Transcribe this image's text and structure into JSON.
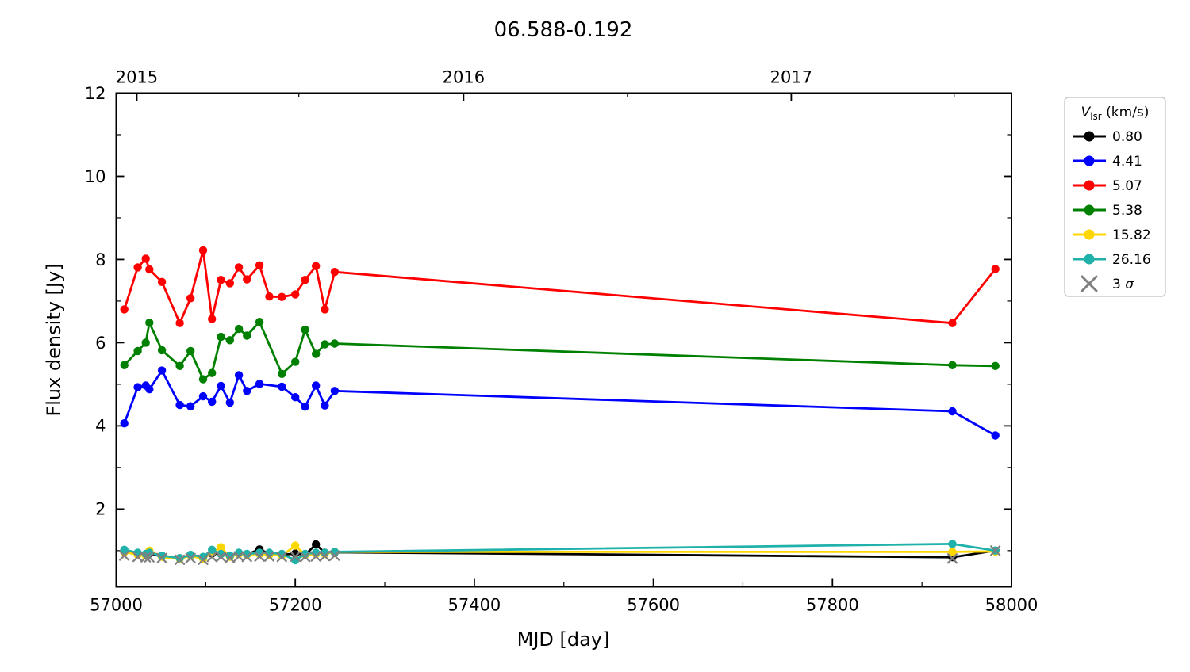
{
  "chart_data": {
    "type": "line",
    "title": "06.588-0.192",
    "xlabel": "MJD [day]",
    "ylabel": "Flux density [Jy]",
    "xlim": [
      57000,
      58000
    ],
    "ylim": [
      0.13,
      12
    ],
    "xticks": [
      57000,
      57200,
      57400,
      57600,
      57800,
      58000
    ],
    "yticks": [
      2,
      4,
      6,
      8,
      10,
      12
    ],
    "x_minor_ticks": [
      57100,
      57300,
      57500,
      57700,
      57900
    ],
    "y_minor_ticks": [
      1,
      3,
      5,
      7,
      9,
      11
    ],
    "grid": false,
    "top_axis": {
      "ticks": [
        {
          "label": "2015",
          "mjd": 57023
        },
        {
          "label": "2016",
          "mjd": 57388
        },
        {
          "label": "2017",
          "mjd": 57754
        }
      ],
      "minor_ticks": [
        57204,
        57571,
        57936
      ]
    },
    "legend": {
      "position": "outside-right",
      "title_var": "V",
      "title_sub": "lsr",
      "title_rest": " (km/s)",
      "border_color": "#cccccc",
      "sigma_prefix": "3 ",
      "sigma_symbol": "σ"
    },
    "series": [
      {
        "label": "0.80",
        "color": "#000000",
        "marker": "circle",
        "line": true,
        "x": [
          57009,
          57024,
          57033,
          57037,
          57051,
          57071,
          57083,
          57097,
          57107,
          57117,
          57127,
          57137,
          57146,
          57160,
          57171,
          57185,
          57200,
          57211,
          57223,
          57233,
          57244,
          57934,
          57982
        ],
        "y": [
          0.97,
          0.92,
          0.9,
          0.93,
          0.86,
          0.82,
          0.89,
          0.84,
          0.93,
          0.92,
          0.87,
          0.93,
          0.91,
          1.03,
          0.93,
          0.9,
          0.93,
          0.9,
          1.15,
          0.95,
          0.96,
          0.84,
          1.0
        ]
      },
      {
        "label": "4.41",
        "color": "#0000ff",
        "marker": "circle",
        "line": true,
        "x": [
          57009,
          57024,
          57033,
          57037,
          57051,
          57071,
          57083,
          57097,
          57107,
          57117,
          57127,
          57137,
          57146,
          57160,
          57185,
          57200,
          57211,
          57223,
          57233,
          57244,
          57934,
          57982
        ],
        "y": [
          4.06,
          4.93,
          4.97,
          4.88,
          5.33,
          4.5,
          4.47,
          4.71,
          4.58,
          4.96,
          4.56,
          5.22,
          4.84,
          5.01,
          4.94,
          4.69,
          4.46,
          4.97,
          4.49,
          4.84,
          4.35,
          3.77
        ]
      },
      {
        "label": "5.07",
        "color": "#ff0000",
        "marker": "circle",
        "line": true,
        "x": [
          57009,
          57024,
          57033,
          57037,
          57051,
          57071,
          57083,
          57097,
          57107,
          57117,
          57127,
          57137,
          57146,
          57160,
          57171,
          57185,
          57200,
          57211,
          57223,
          57233,
          57244,
          57934,
          57982
        ],
        "y": [
          6.8,
          7.81,
          8.02,
          7.76,
          7.46,
          6.47,
          7.07,
          8.22,
          6.57,
          7.51,
          7.43,
          7.81,
          7.52,
          7.86,
          7.11,
          7.1,
          7.16,
          7.51,
          7.84,
          6.8,
          7.7,
          6.47,
          7.77
        ]
      },
      {
        "label": "5.38",
        "color": "#008000",
        "marker": "circle",
        "line": true,
        "x": [
          57009,
          57024,
          57033,
          57037,
          57051,
          57071,
          57083,
          57097,
          57107,
          57117,
          57127,
          57137,
          57146,
          57160,
          57185,
          57200,
          57211,
          57223,
          57233,
          57244,
          57934,
          57982
        ],
        "y": [
          5.46,
          5.8,
          6.0,
          6.48,
          5.82,
          5.44,
          5.8,
          5.12,
          5.27,
          6.14,
          6.06,
          6.33,
          6.17,
          6.5,
          5.25,
          5.54,
          6.31,
          5.73,
          5.96,
          5.98,
          5.46,
          5.44
        ]
      },
      {
        "label": "15.82",
        "color": "#ffd700",
        "marker": "circle",
        "line": true,
        "x": [
          57009,
          57024,
          57033,
          57037,
          57051,
          57071,
          57083,
          57097,
          57107,
          57117,
          57127,
          57137,
          57146,
          57160,
          57171,
          57185,
          57200,
          57211,
          57223,
          57233,
          57244,
          57934,
          57982
        ],
        "y": [
          0.97,
          0.9,
          0.88,
          1.0,
          0.85,
          0.8,
          0.88,
          0.8,
          0.95,
          1.08,
          0.85,
          0.92,
          0.9,
          0.92,
          0.9,
          0.88,
          1.12,
          0.9,
          0.92,
          0.92,
          0.97,
          0.97,
          0.98
        ]
      },
      {
        "label": "26.16",
        "color": "#20b2aa",
        "marker": "circle",
        "line": true,
        "x": [
          57009,
          57024,
          57033,
          57037,
          57051,
          57071,
          57083,
          57097,
          57107,
          57117,
          57127,
          57137,
          57146,
          57160,
          57171,
          57185,
          57200,
          57211,
          57223,
          57233,
          57244,
          57934,
          57982
        ],
        "y": [
          1.02,
          0.95,
          0.92,
          0.95,
          0.88,
          0.82,
          0.9,
          0.85,
          1.02,
          0.92,
          0.88,
          0.95,
          0.92,
          0.95,
          0.95,
          0.92,
          0.77,
          0.92,
          0.95,
          0.95,
          0.97,
          1.16,
          1.0
        ]
      },
      {
        "label": "3 σ",
        "color": "#7f7f7f",
        "marker": "x",
        "line": false,
        "x": [
          57009,
          57024,
          57033,
          57037,
          57051,
          57071,
          57083,
          57097,
          57107,
          57117,
          57127,
          57137,
          57146,
          57160,
          57171,
          57185,
          57200,
          57211,
          57223,
          57233,
          57244,
          57934,
          57982
        ],
        "y": [
          0.88,
          0.85,
          0.84,
          0.84,
          0.82,
          0.78,
          0.82,
          0.78,
          0.85,
          0.85,
          0.82,
          0.86,
          0.85,
          0.86,
          0.86,
          0.85,
          0.86,
          0.85,
          0.86,
          0.87,
          0.88,
          0.81,
          1.0
        ]
      }
    ]
  }
}
